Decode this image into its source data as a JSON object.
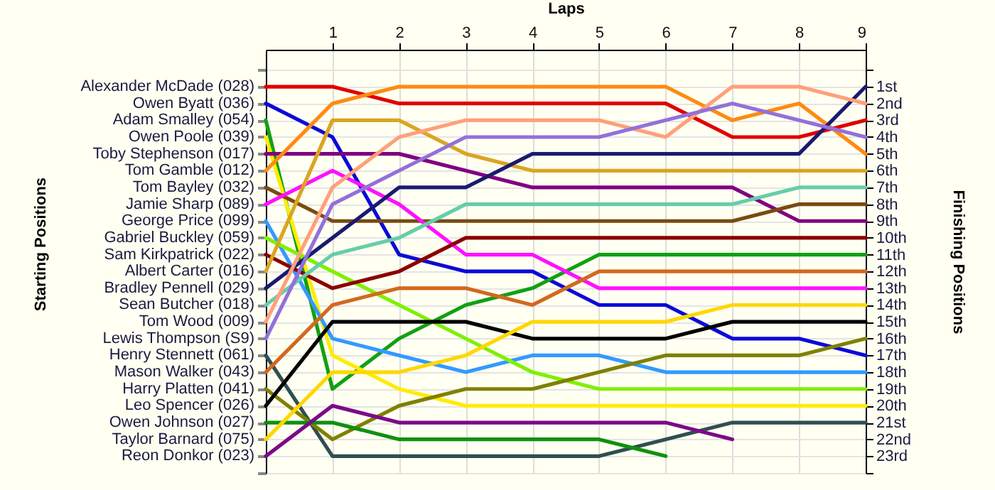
{
  "chart_data": {
    "type": "line",
    "xlabel": "Laps",
    "ylabel": "Finishing Positions",
    "annotations": [
      "Starting Positions"
    ],
    "x": [
      0,
      1,
      2,
      3,
      4,
      5,
      6,
      7,
      8,
      9
    ],
    "xlim": [
      0,
      9
    ],
    "xticks": [
      1,
      2,
      3,
      4,
      5,
      6,
      7,
      8,
      9
    ],
    "ylim": [
      24,
      -1.2
    ],
    "yticks": [
      {
        "value": 0,
        "label": null
      },
      {
        "value": 1,
        "label": "1st"
      },
      {
        "value": 2,
        "label": "2nd"
      },
      {
        "value": 3,
        "label": "3rd"
      },
      {
        "value": 4,
        "label": "4th"
      },
      {
        "value": 5,
        "label": "5th"
      },
      {
        "value": 6,
        "label": "6th"
      },
      {
        "value": 7,
        "label": "7th"
      },
      {
        "value": 8,
        "label": "8th"
      },
      {
        "value": 9,
        "label": "9th"
      },
      {
        "value": 10,
        "label": "10th"
      },
      {
        "value": 11,
        "label": "11th"
      },
      {
        "value": 12,
        "label": "12th"
      },
      {
        "value": 13,
        "label": "13th"
      },
      {
        "value": 14,
        "label": "14th"
      },
      {
        "value": 15,
        "label": "15th"
      },
      {
        "value": 16,
        "label": "16th"
      },
      {
        "value": 17,
        "label": "17th"
      },
      {
        "value": 18,
        "label": "18th"
      },
      {
        "value": 19,
        "label": "19th"
      },
      {
        "value": 20,
        "label": "20th"
      },
      {
        "value": 21,
        "label": "21st"
      },
      {
        "value": 22,
        "label": "22nd"
      },
      {
        "value": 23,
        "label": "23rd"
      },
      {
        "value": 24,
        "label": null
      }
    ],
    "grid": true,
    "legend": "left",
    "series": [
      {
        "name": "Alexander McDade (028)",
        "color": "#e00000",
        "values": [
          1,
          1,
          2,
          2,
          2,
          2,
          2,
          4,
          4,
          3
        ]
      },
      {
        "name": "Owen Byatt (036)",
        "color": "#0a0ad8",
        "values": [
          2,
          4,
          11,
          12,
          12,
          14,
          14,
          16,
          16,
          17
        ]
      },
      {
        "name": "Adam Smalley (054)",
        "color": "#12a012",
        "values": [
          3,
          19,
          16,
          14,
          13,
          11,
          11,
          11,
          11,
          11
        ]
      },
      {
        "name": "Owen Poole (039)",
        "color": "#ffec00",
        "values": [
          4,
          17,
          19,
          20,
          20,
          20,
          20,
          20,
          20,
          20
        ]
      },
      {
        "name": "Toby Stephenson (017)",
        "color": "#800080",
        "values": [
          5,
          5,
          5,
          6,
          7,
          7,
          7,
          7,
          9,
          9
        ]
      },
      {
        "name": "Tom Gamble (012)",
        "color": "#ff8a10",
        "values": [
          6,
          2,
          1,
          1,
          1,
          1,
          1,
          3,
          2,
          5
        ]
      },
      {
        "name": "Tom Bayley (032)",
        "color": "#7a4a10",
        "values": [
          7,
          9,
          9,
          9,
          9,
          9,
          9,
          9,
          8,
          8
        ]
      },
      {
        "name": "Jamie Sharp (089)",
        "color": "#ff10ff",
        "values": [
          8,
          6,
          8,
          11,
          11,
          13,
          13,
          13,
          13,
          13
        ]
      },
      {
        "name": "George Price (099)",
        "color": "#3399ff",
        "values": [
          9,
          16,
          17,
          18,
          17,
          17,
          18,
          18,
          18,
          18
        ]
      },
      {
        "name": "Gabriel Buckley (059)",
        "color": "#80f000",
        "values": [
          10,
          12,
          14,
          16,
          18,
          19,
          19,
          19,
          19,
          19
        ]
      },
      {
        "name": "Sam Kirkpatrick (022)",
        "color": "#8b0000",
        "values": [
          11,
          13,
          12,
          10,
          10,
          10,
          10,
          10,
          10,
          10
        ]
      },
      {
        "name": "Albert Carter (016)",
        "color": "#daa520",
        "values": [
          12,
          3,
          3,
          5,
          6,
          6,
          6,
          6,
          6,
          6
        ]
      },
      {
        "name": "Bradley Pennell (029)",
        "color": "#1a1a70",
        "values": [
          13,
          10,
          7,
          7,
          5,
          5,
          5,
          5,
          5,
          1
        ]
      },
      {
        "name": "Sean Butcher (018)",
        "color": "#66cdaa",
        "values": [
          14,
          11,
          10,
          8,
          8,
          8,
          8,
          8,
          7,
          7
        ]
      },
      {
        "name": "Tom Wood (009)",
        "color": "#ffa07a",
        "values": [
          15,
          7,
          4,
          3,
          3,
          3,
          4,
          1,
          1,
          2
        ]
      },
      {
        "name": "Lewis Thompson (S9)",
        "color": "#9370db",
        "values": [
          16,
          8,
          6,
          4,
          4,
          4,
          3,
          2,
          3,
          4
        ]
      },
      {
        "name": "Henry Stennett (061)",
        "color": "#2f4f4f",
        "values": [
          17,
          23,
          23,
          23,
          23,
          23,
          22,
          21,
          21,
          21
        ]
      },
      {
        "name": "Mason Walker (043)",
        "color": "#d2691e",
        "values": [
          18,
          14,
          13,
          13,
          14,
          12,
          12,
          12,
          12,
          12
        ]
      },
      {
        "name": "Harry Platten (041)",
        "color": "#808000",
        "values": [
          19,
          22,
          20,
          19,
          19,
          18,
          17,
          17,
          17,
          16
        ]
      },
      {
        "name": "Leo Spencer (026)",
        "color": "#000000",
        "values": [
          20,
          15,
          15,
          15,
          16,
          16,
          16,
          15,
          15,
          15
        ]
      },
      {
        "name": "Owen Johnson (027)",
        "color": "#109010",
        "values": [
          21,
          21,
          22,
          22,
          22,
          22,
          23,
          null,
          null,
          null
        ]
      },
      {
        "name": "Taylor Barnard (075)",
        "color": "#ffd700",
        "values": [
          22,
          18,
          18,
          17,
          15,
          15,
          15,
          14,
          14,
          14
        ]
      },
      {
        "name": "Reon Donkor (023)",
        "color": "#7b0a8a",
        "values": [
          23,
          20,
          21,
          21,
          21,
          21,
          21,
          22,
          null,
          null
        ]
      }
    ]
  }
}
